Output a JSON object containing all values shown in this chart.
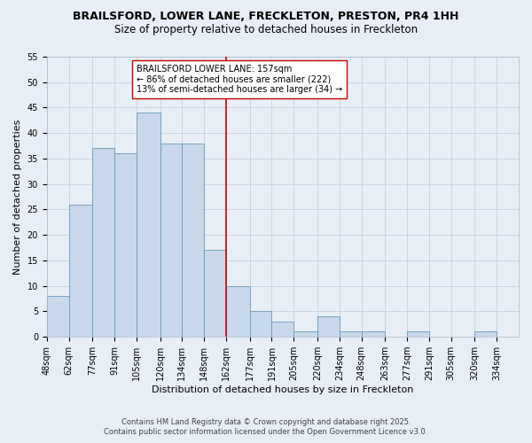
{
  "title": "BRAILSFORD, LOWER LANE, FRECKLETON, PRESTON, PR4 1HH",
  "subtitle": "Size of property relative to detached houses in Freckleton",
  "xlabel": "Distribution of detached houses by size in Freckleton",
  "ylabel": "Number of detached properties",
  "bin_labels": [
    "48sqm",
    "62sqm",
    "77sqm",
    "91sqm",
    "105sqm",
    "120sqm",
    "134sqm",
    "148sqm",
    "162sqm",
    "177sqm",
    "191sqm",
    "205sqm",
    "220sqm",
    "234sqm",
    "248sqm",
    "263sqm",
    "277sqm",
    "291sqm",
    "305sqm",
    "320sqm",
    "334sqm"
  ],
  "bin_edges": [
    48,
    62,
    77,
    91,
    105,
    120,
    134,
    148,
    162,
    177,
    191,
    205,
    220,
    234,
    248,
    263,
    277,
    291,
    305,
    320,
    334,
    348
  ],
  "bar_heights": [
    8,
    26,
    37,
    36,
    44,
    38,
    38,
    17,
    10,
    5,
    3,
    1,
    4,
    1,
    1,
    0,
    1,
    0,
    0,
    1,
    0
  ],
  "bar_color": "#c8d8ea",
  "bar_edge_color": "#6699bb",
  "grid_color": "#bbccdd",
  "background_color": "#e8eef5",
  "property_line_x": 162,
  "property_line_color": "#cc0000",
  "annotation_text": "BRAILSFORD LOWER LANE: 157sqm\n← 86% of detached houses are smaller (222)\n13% of semi-detached houses are larger (34) →",
  "annotation_box_color": "#ffffff",
  "annotation_box_edge": "#cc0000",
  "ylim": [
    0,
    55
  ],
  "yticks": [
    0,
    5,
    10,
    15,
    20,
    25,
    30,
    35,
    40,
    45,
    50,
    55
  ],
  "footer_line1": "Contains HM Land Registry data © Crown copyright and database right 2025.",
  "footer_line2": "Contains public sector information licensed under the Open Government Licence v3.0.",
  "title_fontsize": 9,
  "subtitle_fontsize": 8.5,
  "axis_label_fontsize": 8,
  "tick_fontsize": 7,
  "annotation_fontsize": 7,
  "footer_fontsize": 6
}
